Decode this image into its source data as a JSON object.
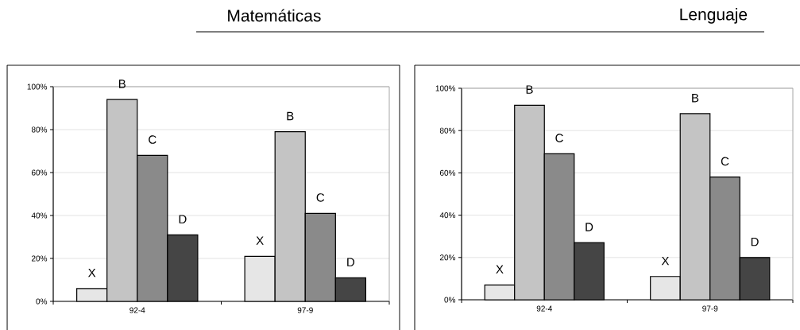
{
  "chart_data": [
    {
      "type": "bar",
      "title": "Matemáticas",
      "categories": [
        "92-4",
        "97-9"
      ],
      "ylim": [
        0,
        100
      ],
      "yticks": [
        {
          "value": 0,
          "label": "0%"
        },
        {
          "value": 20,
          "label": "20%"
        },
        {
          "value": 40,
          "label": "40%"
        },
        {
          "value": 60,
          "label": "60%"
        },
        {
          "value": 80,
          "label": "80%"
        },
        {
          "value": 100,
          "label": "100%"
        }
      ],
      "grid": "y",
      "series": [
        {
          "name": "X",
          "color": "#e6e6e6",
          "values": [
            6,
            21
          ]
        },
        {
          "name": "B",
          "color": "#c4c4c4",
          "values": [
            94,
            79
          ]
        },
        {
          "name": "C",
          "color": "#8a8a8a",
          "values": [
            68,
            41
          ]
        },
        {
          "name": "D",
          "color": "#454545",
          "values": [
            31,
            11
          ]
        }
      ]
    },
    {
      "type": "bar",
      "title": "Lenguaje",
      "categories": [
        "92-4",
        "97-9"
      ],
      "ylim": [
        0,
        100
      ],
      "yticks": [
        {
          "value": 0,
          "label": "0%"
        },
        {
          "value": 20,
          "label": "20%"
        },
        {
          "value": 40,
          "label": "40%"
        },
        {
          "value": 60,
          "label": "60%"
        },
        {
          "value": 80,
          "label": "80%"
        },
        {
          "value": 100,
          "label": "100%"
        }
      ],
      "grid": "y",
      "series": [
        {
          "name": "X",
          "color": "#e6e6e6",
          "values": [
            7,
            11
          ]
        },
        {
          "name": "B",
          "color": "#c4c4c4",
          "values": [
            92,
            88
          ]
        },
        {
          "name": "C",
          "color": "#8a8a8a",
          "values": [
            69,
            58
          ]
        },
        {
          "name": "D",
          "color": "#454545",
          "values": [
            27,
            20
          ]
        }
      ]
    }
  ]
}
